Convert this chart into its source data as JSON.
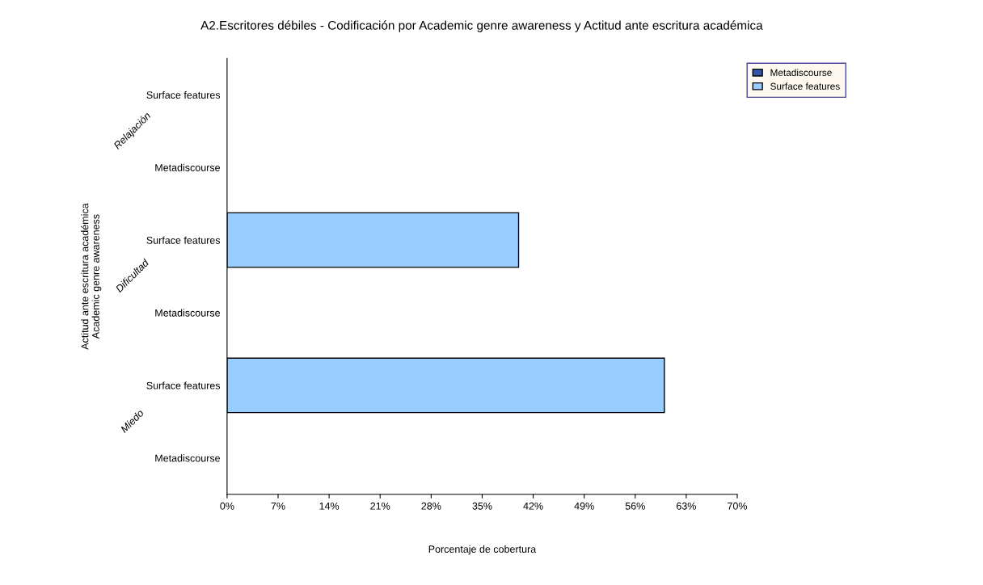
{
  "chart_data": {
    "type": "bar",
    "orientation": "horizontal",
    "title": "A2.Escritores débiles - Codificación por Academic genre awareness y Actitud ante escritura académica",
    "xlabel": "Porcentaje de cobertura",
    "ylabel": "Actitud ante escritura académica\nAcademic genre awareness",
    "categories": [
      "Surface features",
      "Metadiscourse",
      "Surface features",
      "Metadiscourse",
      "Surface features",
      "Metadiscourse"
    ],
    "annotations": [
      "Relajación",
      "Dificultad",
      "Miedo"
    ],
    "series": [
      {
        "name": "Metadiscourse",
        "color": "#3355aa",
        "values": [
          null,
          0,
          null,
          0,
          null,
          0
        ]
      },
      {
        "name": "Surface features",
        "color": "#99ccff",
        "values": [
          0,
          null,
          40,
          null,
          60,
          null
        ]
      }
    ],
    "xlim": [
      0,
      70
    ],
    "xticks": [
      {
        "value": 0,
        "label": "0%"
      },
      {
        "value": 7,
        "label": "7%"
      },
      {
        "value": 14,
        "label": "14%"
      },
      {
        "value": 21,
        "label": "21%"
      },
      {
        "value": 28,
        "label": "28%"
      },
      {
        "value": 35,
        "label": "35%"
      },
      {
        "value": 42,
        "label": "42%"
      },
      {
        "value": 49,
        "label": "49%"
      },
      {
        "value": 56,
        "label": "56%"
      },
      {
        "value": 63,
        "label": "63%"
      },
      {
        "value": 70,
        "label": "70%"
      }
    ],
    "legend": "right"
  }
}
